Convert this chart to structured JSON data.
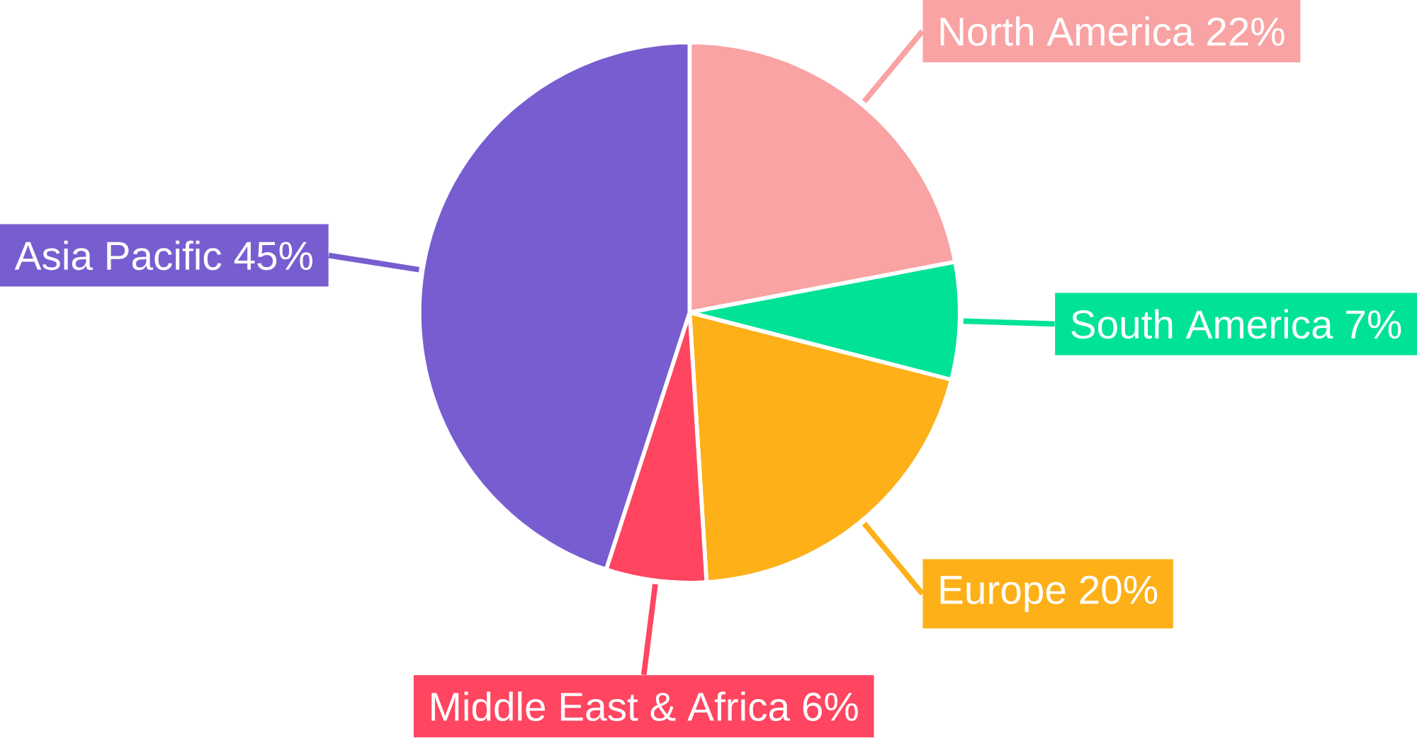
{
  "chart_data": {
    "type": "pie",
    "categories": [
      "North America",
      "South America",
      "Europe",
      "Middle East & Africa",
      "Asia Pacific"
    ],
    "values": [
      22,
      7,
      20,
      6,
      45
    ],
    "value_labels": [
      "22%",
      "7%",
      "20%",
      "6%",
      "45%"
    ],
    "colors": [
      "#f9a3a4",
      "#00e396",
      "#feb019",
      "#ff4560",
      "#775dd0"
    ]
  }
}
